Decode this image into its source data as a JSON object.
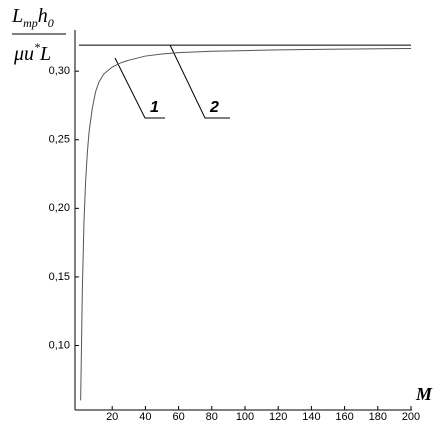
{
  "chart_data": {
    "type": "line",
    "ylabel": {
      "numerator": [
        "L",
        "mp",
        "h",
        "0"
      ],
      "denominator": [
        "μu",
        "*",
        "L"
      ]
    },
    "xlabel": "M",
    "xlim": [
      0,
      200
    ],
    "xticks": [
      20,
      40,
      60,
      80,
      100,
      120,
      140,
      160,
      180,
      200
    ],
    "ylim": [
      0.053,
      0.33
    ],
    "yticks": [
      {
        "value": 0.1,
        "label": "0,10"
      },
      {
        "value": 0.15,
        "label": "0,15"
      },
      {
        "value": 0.2,
        "label": "0,20"
      },
      {
        "value": 0.25,
        "label": "0,25"
      },
      {
        "value": 0.3,
        "label": "0,30"
      }
    ],
    "grid": false,
    "series": [
      {
        "name": "1",
        "color": "#555555",
        "x": [
          1,
          2,
          3,
          4,
          5,
          6,
          8,
          10,
          12,
          15,
          20,
          25,
          30,
          40,
          50,
          60,
          80,
          100,
          120,
          150,
          200
        ],
        "values": [
          0.06,
          0.14,
          0.19,
          0.22,
          0.24,
          0.255,
          0.273,
          0.285,
          0.292,
          0.298,
          0.303,
          0.306,
          0.308,
          0.311,
          0.3125,
          0.3135,
          0.3145,
          0.315,
          0.3155,
          0.316,
          0.3165
        ]
      },
      {
        "name": "2",
        "color": "#000000",
        "x": [
          0,
          200
        ],
        "values": [
          0.319,
          0.319
        ]
      }
    ]
  }
}
